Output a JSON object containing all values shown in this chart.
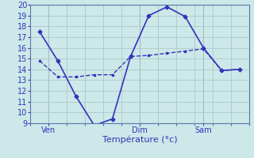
{
  "line1": [
    17.5,
    14.8,
    11.5,
    8.8,
    9.4,
    15.2,
    19.0,
    19.8,
    18.9,
    16.0,
    13.9,
    14.0
  ],
  "line2": [
    14.8,
    13.3,
    13.3,
    13.5,
    13.5,
    15.2,
    15.3,
    15.5,
    15.7,
    15.9,
    13.9,
    14.0
  ],
  "x": [
    0,
    1,
    2,
    3,
    4,
    5,
    6,
    7,
    8,
    9,
    10,
    11
  ],
  "xtick_positions": [
    0.5,
    5.5,
    9.0
  ],
  "xtick_labels": [
    "Ven",
    "Dim",
    "Sam"
  ],
  "vline_x": [
    0.5,
    5.5,
    9.0
  ],
  "xlabel": "Température (°c)",
  "ylim": [
    9,
    20
  ],
  "yticks": [
    9,
    10,
    11,
    12,
    13,
    14,
    15,
    16,
    17,
    18,
    19,
    20
  ],
  "line_color": "#3333bb",
  "bg_color": "#cce8e8",
  "grid_color": "#aacaca",
  "fig_bg": "#cce8e8",
  "axis_color": "#4444aa",
  "tick_color": "#3333bb"
}
